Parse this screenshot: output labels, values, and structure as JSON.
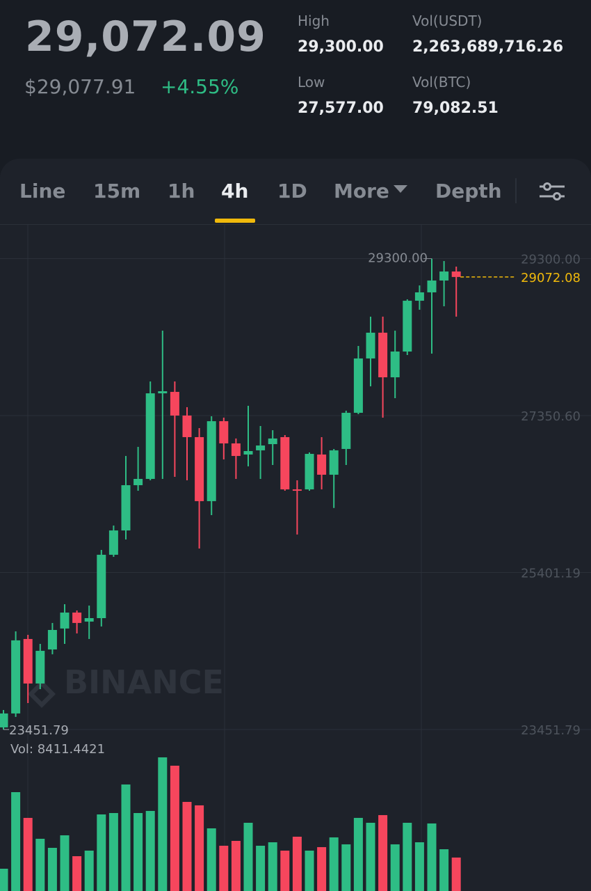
{
  "header": {
    "price": "29,072.09",
    "price_usd": "$29,077.91",
    "change": "+4.55%",
    "stats": [
      {
        "label": "High",
        "value": "29,300.00"
      },
      {
        "label": "Vol(USDT)",
        "value": "2,263,689,716.26"
      },
      {
        "label": "Low",
        "value": "27,577.00"
      },
      {
        "label": "Vol(BTC)",
        "value": "79,082.51"
      }
    ]
  },
  "tabs": [
    {
      "label": "Line"
    },
    {
      "label": "15m"
    },
    {
      "label": "1h"
    },
    {
      "label": "4h",
      "active": true
    },
    {
      "label": "1D"
    },
    {
      "label": "More"
    },
    {
      "label": "Depth"
    }
  ],
  "watermark": "BINANCE",
  "chart_data": {
    "type": "candlestick",
    "up_color": "#2ebd85",
    "down_color": "#f6465d",
    "open": [
      23478,
      23651,
      24576,
      24023,
      24446,
      24706,
      24904,
      24792,
      24835,
      25622,
      25924,
      26486,
      26564,
      27627,
      27645,
      27351,
      27083,
      26288,
      27281,
      27005,
      26867,
      26919,
      26996,
      27083,
      26434,
      26434,
      26867,
      26616,
      26936,
      27385,
      28060,
      28380,
      27826,
      28146,
      28777,
      28881,
      29028,
      29140
    ],
    "high": [
      23694,
      24671,
      24628,
      24515,
      24775,
      25008,
      24930,
      24991,
      25682,
      25985,
      26849,
      26962,
      27774,
      28405,
      27774,
      27455,
      27195,
      27342,
      27325,
      27066,
      27472,
      27221,
      27169,
      27109,
      26547,
      26893,
      27083,
      26936,
      27411,
      28215,
      28579,
      28579,
      28405,
      28794,
      28967,
      29300,
      29270,
      29201
    ],
    "low": [
      23452,
      23608,
      23780,
      23953,
      24386,
      24515,
      24645,
      24576,
      24731,
      25596,
      25812,
      26417,
      26547,
      26564,
      26590,
      26547,
      25700,
      26115,
      26806,
      26564,
      26720,
      26564,
      26737,
      26417,
      25873,
      26417,
      26434,
      26203,
      26737,
      27368,
      27714,
      27325,
      27567,
      28103,
      28665,
      28120,
      28708,
      28579
    ],
    "close": [
      23651,
      24559,
      24023,
      24429,
      24688,
      24904,
      24775,
      24835,
      25622,
      25924,
      26486,
      26564,
      27627,
      27653,
      27351,
      27083,
      26288,
      27281,
      27005,
      26849,
      26910,
      26979,
      27066,
      26434,
      26417,
      26875,
      26616,
      26919,
      27385,
      28060,
      28380,
      27826,
      28146,
      28777,
      28881,
      29028,
      29140,
      29072.08
    ],
    "volume": [
      5600,
      24850,
      18380,
      13130,
      10850,
      14000,
      8750,
      10150,
      19250,
      19600,
      26780,
      19600,
      20130,
      33600,
      31500,
      22400,
      21530,
      15750,
      11380,
      12600,
      17150,
      11380,
      12250,
      10150,
      13650,
      10150,
      11030,
      13480,
      11730,
      18380,
      17150,
      19080,
      11730,
      17150,
      12250,
      16980,
      10500,
      8411.4421
    ],
    "ylim": [
      23348,
      29659
    ],
    "yticks": [
      {
        "value": 29300,
        "label": "29300.00"
      },
      {
        "value": 27350.6,
        "label": "27350.60"
      },
      {
        "value": 25401.19,
        "label": "25401.19"
      },
      {
        "value": 23451.79,
        "label": "23451.79"
      }
    ],
    "grid": true,
    "high_marker": {
      "value": 29300,
      "label": "29300.00"
    },
    "last_price": 29072.08,
    "low_marker": 23451.79,
    "volume_label": "Vol: 8411.4421"
  }
}
